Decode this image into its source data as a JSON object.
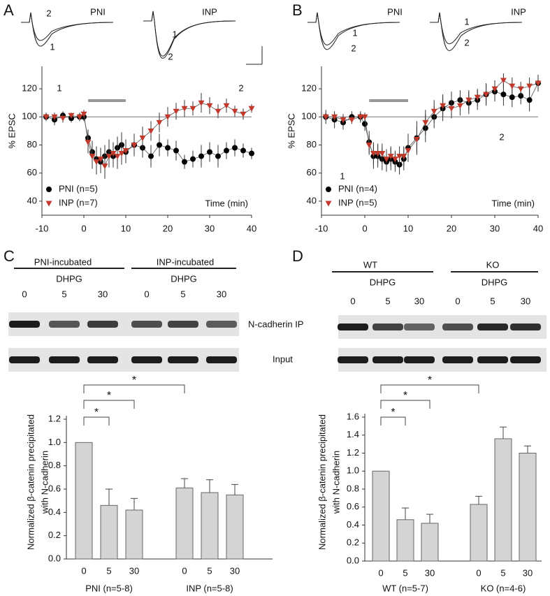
{
  "chart_data": [
    {
      "type": "line",
      "panel": "A",
      "ylabel": "% EPSC",
      "xlabel": "Time (min)",
      "xlim": [
        -10,
        40
      ],
      "xticks": [
        -10,
        0,
        10,
        20,
        30,
        40
      ],
      "ylim": [
        30,
        130
      ],
      "yticks": [
        40,
        60,
        80,
        100,
        120
      ],
      "reference_line": 100,
      "application_bar": [
        1,
        10
      ],
      "x": [
        -9,
        -7,
        -5,
        -3,
        -1,
        0,
        1,
        2,
        3,
        4,
        5,
        6,
        7,
        8,
        9,
        10,
        12,
        14,
        16,
        18,
        20,
        22,
        24,
        26,
        28,
        30,
        32,
        34,
        36,
        38,
        40
      ],
      "series": [
        {
          "name": "PNI (n=5)",
          "color": "#000000",
          "marker": "circle",
          "values": [
            100,
            98,
            101,
            99,
            100,
            100,
            85,
            75,
            70,
            68,
            72,
            75,
            72,
            78,
            80,
            75,
            80,
            78,
            72,
            80,
            78,
            76,
            68,
            70,
            72,
            75,
            72,
            76,
            78,
            76,
            74
          ],
          "errors": [
            3,
            4,
            3,
            3,
            3,
            3,
            6,
            8,
            9,
            8,
            8,
            9,
            8,
            8,
            9,
            8,
            8,
            7,
            8,
            8,
            6,
            7,
            5,
            6,
            8,
            7,
            8,
            6,
            6,
            5,
            4
          ]
        },
        {
          "name": "INP (n=7)",
          "color": "#c0392b",
          "marker": "triangle",
          "values": [
            100,
            100,
            99,
            101,
            100,
            102,
            82,
            72,
            68,
            70,
            65,
            72,
            74,
            72,
            74,
            76,
            80,
            85,
            90,
            96,
            100,
            104,
            106,
            106,
            110,
            108,
            104,
            108,
            104,
            102,
            106
          ],
          "errors": [
            2,
            3,
            3,
            2,
            3,
            3,
            8,
            9,
            9,
            8,
            9,
            8,
            8,
            9,
            8,
            8,
            7,
            8,
            7,
            7,
            7,
            6,
            6,
            5,
            7,
            6,
            5,
            5,
            4,
            4,
            3
          ]
        }
      ],
      "annotations": [
        "1",
        "2"
      ],
      "insets": [
        {
          "title": "PNI",
          "labels": [
            "2",
            "1"
          ]
        },
        {
          "title": "INP",
          "labels": [
            "1",
            "2"
          ]
        }
      ]
    },
    {
      "type": "line",
      "panel": "B",
      "ylabel": "% EPSC",
      "xlabel": "Time (min)",
      "xlim": [
        -10,
        40
      ],
      "xticks": [
        -10,
        0,
        10,
        20,
        30,
        40
      ],
      "ylim": [
        30,
        130
      ],
      "yticks": [
        40,
        60,
        80,
        100,
        120
      ],
      "reference_line": 100,
      "application_bar": [
        1,
        10
      ],
      "x": [
        -9,
        -7,
        -5,
        -3,
        -1,
        0,
        1,
        2,
        3,
        4,
        5,
        6,
        7,
        8,
        9,
        10,
        12,
        14,
        16,
        18,
        20,
        22,
        24,
        26,
        28,
        30,
        32,
        34,
        36,
        38,
        40
      ],
      "series": [
        {
          "name": "PNI (n=4)",
          "color": "#000000",
          "marker": "circle",
          "values": [
            100,
            98,
            96,
            100,
            100,
            95,
            82,
            72,
            72,
            70,
            68,
            70,
            68,
            66,
            70,
            78,
            85,
            92,
            100,
            106,
            110,
            112,
            110,
            112,
            116,
            118,
            116,
            114,
            115,
            112,
            124
          ],
          "errors": [
            5,
            6,
            5,
            4,
            4,
            5,
            8,
            9,
            8,
            8,
            7,
            8,
            7,
            7,
            8,
            10,
            12,
            10,
            8,
            9,
            8,
            7,
            8,
            7,
            8,
            7,
            8,
            7,
            6,
            8,
            6
          ]
        },
        {
          "name": "INP (n=5)",
          "color": "#c0392b",
          "marker": "triangle",
          "values": [
            100,
            100,
            98,
            98,
            100,
            100,
            80,
            74,
            74,
            74,
            70,
            72,
            70,
            72,
            72,
            76,
            84,
            96,
            104,
            108,
            106,
            108,
            112,
            114,
            116,
            120,
            126,
            122,
            120,
            122,
            124
          ],
          "errors": [
            3,
            3,
            4,
            3,
            3,
            3,
            7,
            8,
            7,
            7,
            7,
            7,
            6,
            7,
            7,
            8,
            9,
            9,
            8,
            8,
            7,
            7,
            7,
            6,
            7,
            6,
            5,
            6,
            5,
            6,
            5
          ]
        }
      ],
      "annotations": [
        "1",
        "2"
      ],
      "insets": [
        {
          "title": "PNI",
          "labels": [
            "1",
            "2"
          ]
        },
        {
          "title": "INP",
          "labels": [
            "1",
            "2"
          ]
        }
      ]
    },
    {
      "type": "bar",
      "panel": "C",
      "ylabel": [
        "Normalized β-catenin precipitated",
        "with N-cadherin"
      ],
      "categories": [
        "0",
        "5",
        "30",
        null,
        "0",
        "5",
        "30"
      ],
      "values": [
        1.0,
        0.46,
        0.42,
        null,
        0.61,
        0.57,
        0.55
      ],
      "errors": [
        0,
        0.14,
        0.1,
        null,
        0.08,
        0.11,
        0.09
      ],
      "color": "#d4d4d4",
      "group_labels": [
        "PNI (n=5-8)",
        "INP (n=5-8)"
      ],
      "ylim": [
        0,
        1.2
      ],
      "yticks": [
        {
          "value": 0,
          "label": "0.0"
        },
        {
          "value": 0.2,
          "label": "0.2"
        },
        {
          "value": 0.4,
          "label": "0.4"
        },
        {
          "value": 0.6,
          "label": "0.6"
        },
        {
          "value": 0.8,
          "label": "0.8"
        },
        {
          "value": 1.0,
          "label": "1.0"
        },
        {
          "value": 1.2,
          "label": "1.2"
        }
      ],
      "significance": [
        {
          "text": "*",
          "from": 0,
          "to": 1
        },
        {
          "text": "*",
          "from": 0,
          "to": 2
        },
        {
          "text": "*",
          "from": 0,
          "to": 4
        }
      ],
      "blot": {
        "groups": [
          "PNI-incubated",
          "INP-incubated"
        ],
        "treatments": [
          "DHPG",
          "DHPG"
        ],
        "lanes": [
          "0",
          "5",
          "30",
          "0",
          "5",
          "30"
        ],
        "rows": [
          "N-cadherin IP",
          "Input"
        ]
      }
    },
    {
      "type": "bar",
      "panel": "D",
      "ylabel": [
        "Normalized β-catenin precipitated",
        "with N-cadherin"
      ],
      "categories": [
        "0",
        "5",
        "30",
        null,
        "0",
        "5",
        "30"
      ],
      "values": [
        1.0,
        0.46,
        0.42,
        null,
        0.63,
        1.36,
        1.2
      ],
      "errors": [
        0,
        0.13,
        0.1,
        null,
        0.09,
        0.13,
        0.08
      ],
      "color": "#d4d4d4",
      "group_labels": [
        "WT (n=5-7)",
        "KO (n=4-6)"
      ],
      "ylim": [
        0,
        1.6
      ],
      "yticks": [
        {
          "value": 0,
          "label": "0.0"
        },
        {
          "value": 0.2,
          "label": "0.2"
        },
        {
          "value": 0.4,
          "label": "0.4"
        },
        {
          "value": 0.6,
          "label": "0.6"
        },
        {
          "value": 0.8,
          "label": "0.8"
        },
        {
          "value": 1.0,
          "label": "1.0"
        },
        {
          "value": 1.2,
          "label": "1.2"
        },
        {
          "value": 1.4,
          "label": "1.4"
        },
        {
          "value": 1.6,
          "label": "1.6"
        }
      ],
      "significance": [
        {
          "text": "*",
          "from": 0,
          "to": 1
        },
        {
          "text": "*",
          "from": 0,
          "to": 2
        },
        {
          "text": "*",
          "from": 0,
          "to": 4
        }
      ],
      "blot": {
        "groups": [
          "WT",
          "KO"
        ],
        "treatments": [
          "DHPG",
          "DHPG"
        ],
        "lanes": [
          "0",
          "5",
          "30",
          "0",
          "5",
          "30"
        ]
      }
    }
  ]
}
